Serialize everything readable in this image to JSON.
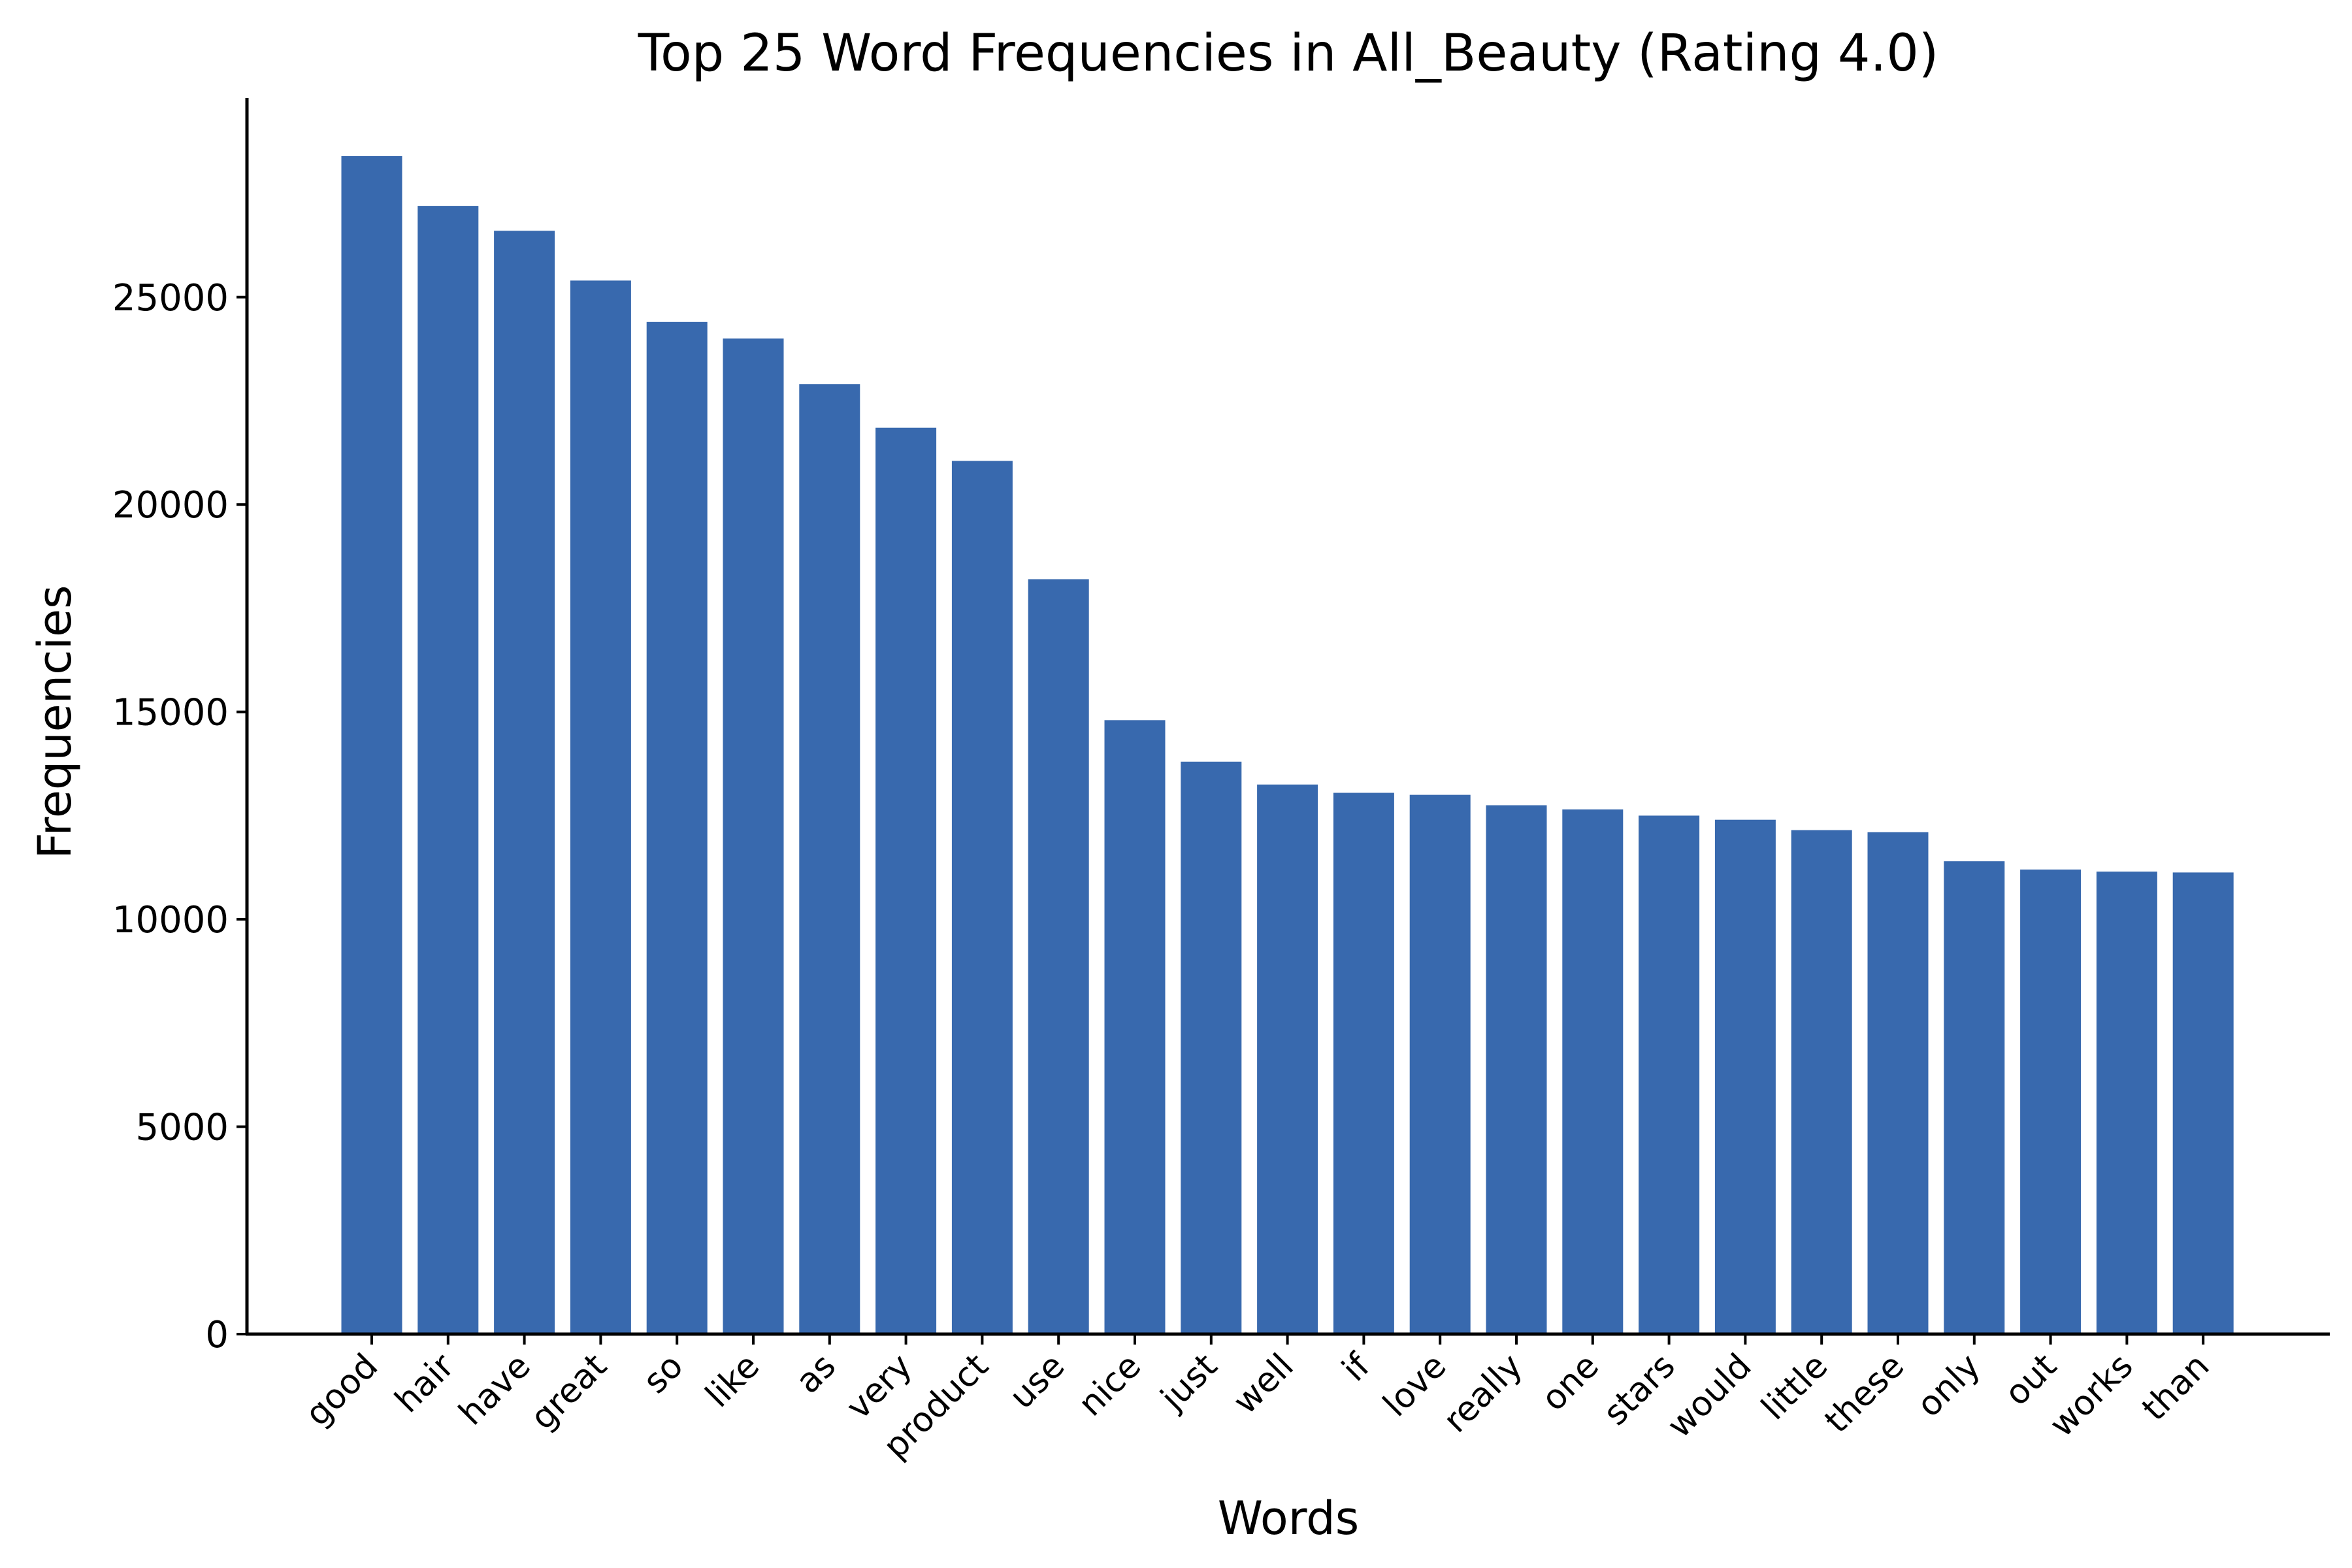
{
  "chart_data": {
    "type": "bar",
    "title": "Top 25 Word Frequencies in All_Beauty (Rating 4.0)",
    "xlabel": "Words",
    "ylabel": "Frequencies",
    "ylim": [
      0,
      29800
    ],
    "y_ticks": [
      0,
      5000,
      10000,
      15000,
      20000,
      25000
    ],
    "y_tick_labels": [
      "0",
      "5000",
      "10000",
      "15000",
      "20000",
      "25000"
    ],
    "categories": [
      "good",
      "hair",
      "have",
      "great",
      "so",
      "like",
      "as",
      "very",
      "product",
      "use",
      "nice",
      "just",
      "well",
      "if",
      "love",
      "really",
      "one",
      "stars",
      "would",
      "little",
      "these",
      "only",
      "out",
      "works",
      "than"
    ],
    "values": [
      28400,
      27200,
      26600,
      25400,
      24400,
      24000,
      22900,
      21850,
      21050,
      18200,
      14800,
      13800,
      13250,
      13050,
      13000,
      12750,
      12650,
      12500,
      12400,
      12150,
      12100,
      11400,
      11200,
      11150,
      11130
    ],
    "grid": false,
    "legend": "none",
    "bar_color": "#3869ae",
    "axis_color": "#000000"
  }
}
